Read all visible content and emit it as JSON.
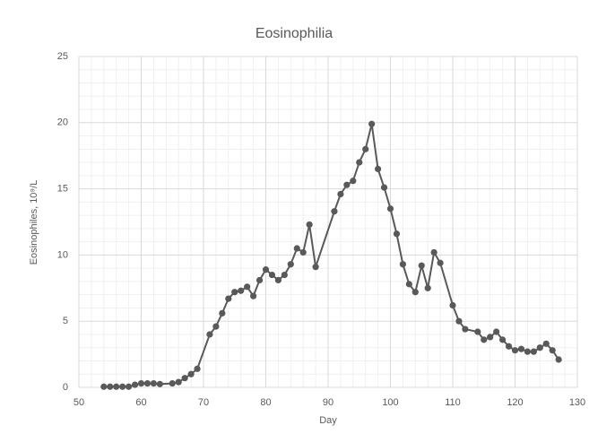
{
  "chart_data": {
    "type": "line",
    "title": "Eosinophilia",
    "x_label": "Day",
    "y_label": "Eosinophiles, 10⁹/L",
    "x": [
      54,
      55,
      56,
      57,
      58,
      59,
      60,
      61,
      62,
      63,
      65,
      66,
      67,
      68,
      69,
      71,
      72,
      73,
      74,
      75,
      76,
      77,
      78,
      79,
      80,
      81,
      82,
      83,
      84,
      85,
      86,
      87,
      88,
      91,
      92,
      93,
      94,
      95,
      96,
      97,
      98,
      99,
      100,
      101,
      102,
      103,
      104,
      105,
      106,
      107,
      108,
      110,
      111,
      112,
      114,
      115,
      116,
      117,
      118,
      119,
      120,
      121,
      122,
      123,
      124,
      125,
      126,
      127
    ],
    "series": [
      {
        "name": "Eosinophiles",
        "color": "#595959",
        "values": [
          0.05,
          0.05,
          0.05,
          0.05,
          0.05,
          0.2,
          0.3,
          0.3,
          0.3,
          0.25,
          0.3,
          0.4,
          0.7,
          1.0,
          1.4,
          4.0,
          4.6,
          5.6,
          6.7,
          7.2,
          7.3,
          7.6,
          6.9,
          8.1,
          8.9,
          8.5,
          8.1,
          8.5,
          9.3,
          10.5,
          10.2,
          12.3,
          9.1,
          13.3,
          14.6,
          15.3,
          15.6,
          17.0,
          18.0,
          19.9,
          16.5,
          15.1,
          13.5,
          11.6,
          9.3,
          7.8,
          7.2,
          9.2,
          7.5,
          10.2,
          9.4,
          6.2,
          5.0,
          4.4,
          4.2,
          3.6,
          3.8,
          4.2,
          3.6,
          3.1,
          2.8,
          2.9,
          2.7,
          2.7,
          3.0,
          3.3,
          2.8,
          2.1
        ]
      }
    ],
    "xlim": [
      50,
      130
    ],
    "xticks": [
      50,
      60,
      70,
      80,
      90,
      100,
      110,
      120,
      130
    ],
    "ylim": [
      0,
      25
    ],
    "yticks": [
      0,
      5,
      10,
      15,
      20,
      25
    ],
    "grid": true,
    "minor_grid": true
  }
}
